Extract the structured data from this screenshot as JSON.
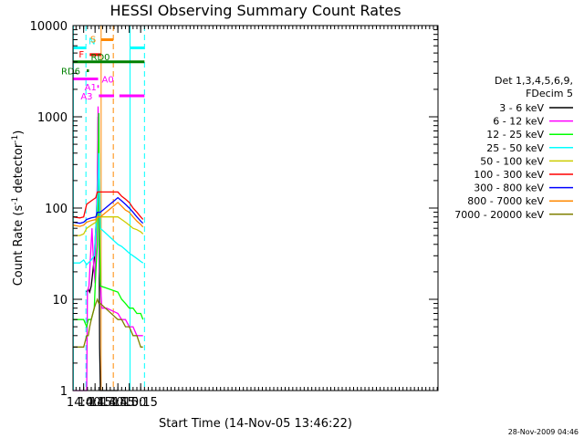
{
  "chart_data": {
    "type": "line",
    "title": "HESSI Observing Summary Count Rates",
    "xlabel": "Start Time (14-Nov-05 13:46:22)",
    "ylabel": "Count Rate (s",
    "ylabel_sup": "-1",
    "ylabel_tail": " detector",
    "ylabel_sup2": "-1",
    "ylabel_end": ")",
    "yscale": "log",
    "ylim": [
      1,
      10000
    ],
    "xlim_min": [
      826,
      1306
    ],
    "x_ticks": [
      {
        "min": 840,
        "label": "14:00"
      },
      {
        "min": 855,
        "label": "14:15"
      },
      {
        "min": 870,
        "label": "14:30"
      },
      {
        "min": 885,
        "label": "14:45"
      },
      {
        "min": 900,
        "label": "15:00"
      },
      {
        "min": 915,
        "label": "15:15"
      }
    ],
    "y_ticks": [
      {
        "value": 1,
        "label": "1"
      },
      {
        "value": 10,
        "label": "10"
      },
      {
        "value": 100,
        "label": "100"
      },
      {
        "value": 1000,
        "label": "1000"
      },
      {
        "value": 10000,
        "label": "10000"
      }
    ],
    "legend_header": [
      "Det 1,3,4,5,6,9,",
      "FDecim 5"
    ],
    "series": [
      {
        "name": "3 - 6 keV",
        "color": "#000000",
        "points": [
          [
            844,
            12
          ],
          [
            846,
            13
          ],
          [
            848,
            12
          ],
          [
            850,
            14
          ],
          [
            852,
            20
          ],
          [
            854,
            28
          ],
          [
            856,
            60
          ],
          [
            858,
            150
          ],
          [
            859,
            1000
          ],
          [
            860,
            300
          ],
          [
            861,
            3
          ],
          [
            862,
            1
          ],
          [
            868,
            1
          ],
          [
            885,
            1
          ]
        ]
      },
      {
        "name": "6 - 12 keV",
        "color": "#ff00ff",
        "points": [
          [
            826,
            1
          ],
          [
            844,
            1
          ],
          [
            845,
            12
          ],
          [
            847,
            14
          ],
          [
            849,
            30
          ],
          [
            851,
            60
          ],
          [
            853,
            25
          ],
          [
            855,
            15
          ],
          [
            856,
            40
          ],
          [
            858,
            200
          ],
          [
            859,
            1300
          ],
          [
            860,
            300
          ],
          [
            861,
            20
          ],
          [
            862,
            15
          ],
          [
            864,
            8
          ],
          [
            870,
            8
          ],
          [
            885,
            7
          ],
          [
            890,
            6
          ],
          [
            895,
            6
          ],
          [
            900,
            5
          ],
          [
            905,
            5
          ],
          [
            910,
            4
          ],
          [
            915,
            4
          ],
          [
            918,
            4
          ]
        ]
      },
      {
        "name": "12 - 25 keV",
        "color": "#00ff00",
        "points": [
          [
            826,
            6
          ],
          [
            835,
            6
          ],
          [
            840,
            6
          ],
          [
            844,
            5
          ],
          [
            846,
            6
          ],
          [
            850,
            6
          ],
          [
            854,
            8
          ],
          [
            856,
            20
          ],
          [
            858,
            40
          ],
          [
            860,
            1100
          ],
          [
            861,
            50
          ],
          [
            862,
            14
          ],
          [
            885,
            12
          ],
          [
            890,
            10
          ],
          [
            895,
            9
          ],
          [
            900,
            8
          ],
          [
            905,
            8
          ],
          [
            910,
            7
          ],
          [
            915,
            7
          ],
          [
            918,
            6
          ]
        ]
      },
      {
        "name": "25 - 50 keV",
        "color": "#00ffff",
        "points": [
          [
            826,
            25
          ],
          [
            835,
            25
          ],
          [
            840,
            27
          ],
          [
            844,
            24
          ],
          [
            846,
            25
          ],
          [
            850,
            27
          ],
          [
            854,
            30
          ],
          [
            856,
            60
          ],
          [
            858,
            120
          ],
          [
            860,
            400
          ],
          [
            862,
            60
          ],
          [
            885,
            40
          ],
          [
            890,
            38
          ],
          [
            895,
            35
          ],
          [
            900,
            32
          ],
          [
            905,
            30
          ],
          [
            910,
            28
          ],
          [
            915,
            26
          ],
          [
            918,
            25
          ]
        ]
      },
      {
        "name": "50 - 100 keV",
        "color": "#cccc00",
        "points": [
          [
            826,
            50
          ],
          [
            835,
            50
          ],
          [
            840,
            52
          ],
          [
            844,
            60
          ],
          [
            850,
            65
          ],
          [
            856,
            70
          ],
          [
            858,
            80
          ],
          [
            860,
            80
          ],
          [
            862,
            80
          ],
          [
            885,
            80
          ],
          [
            890,
            75
          ],
          [
            895,
            70
          ],
          [
            900,
            65
          ],
          [
            905,
            60
          ],
          [
            910,
            58
          ],
          [
            915,
            55
          ],
          [
            918,
            52
          ]
        ]
      },
      {
        "name": "100 - 300 keV",
        "color": "#ff0000",
        "points": [
          [
            826,
            80
          ],
          [
            835,
            78
          ],
          [
            840,
            80
          ],
          [
            844,
            110
          ],
          [
            850,
            120
          ],
          [
            856,
            130
          ],
          [
            858,
            150
          ],
          [
            860,
            150
          ],
          [
            862,
            150
          ],
          [
            885,
            150
          ],
          [
            890,
            135
          ],
          [
            895,
            125
          ],
          [
            900,
            115
          ],
          [
            905,
            100
          ],
          [
            910,
            90
          ],
          [
            915,
            80
          ],
          [
            918,
            75
          ]
        ]
      },
      {
        "name": "300 - 800 keV",
        "color": "#0000ff",
        "points": [
          [
            826,
            70
          ],
          [
            835,
            68
          ],
          [
            840,
            70
          ],
          [
            844,
            75
          ],
          [
            850,
            78
          ],
          [
            856,
            80
          ],
          [
            858,
            90
          ],
          [
            860,
            90
          ],
          [
            862,
            90
          ],
          [
            885,
            130
          ],
          [
            890,
            120
          ],
          [
            895,
            110
          ],
          [
            900,
            100
          ],
          [
            905,
            90
          ],
          [
            910,
            80
          ],
          [
            915,
            72
          ],
          [
            918,
            68
          ]
        ]
      },
      {
        "name": "800 - 7000 keV",
        "color": "#ff8800",
        "points": [
          [
            826,
            65
          ],
          [
            835,
            63
          ],
          [
            840,
            65
          ],
          [
            844,
            70
          ],
          [
            850,
            73
          ],
          [
            856,
            75
          ],
          [
            858,
            80
          ],
          [
            860,
            80
          ],
          [
            862,
            80
          ],
          [
            885,
            115
          ],
          [
            890,
            105
          ],
          [
            895,
            95
          ],
          [
            900,
            90
          ],
          [
            905,
            80
          ],
          [
            910,
            72
          ],
          [
            915,
            66
          ],
          [
            918,
            62
          ]
        ]
      },
      {
        "name": "7000 - 20000 keV",
        "color": "#808000",
        "points": [
          [
            826,
            3
          ],
          [
            835,
            3
          ],
          [
            840,
            3
          ],
          [
            844,
            4
          ],
          [
            846,
            4
          ],
          [
            848,
            5
          ],
          [
            850,
            6
          ],
          [
            854,
            8
          ],
          [
            856,
            9
          ],
          [
            858,
            10
          ],
          [
            860,
            9
          ],
          [
            862,
            9
          ],
          [
            885,
            6
          ],
          [
            890,
            6
          ],
          [
            895,
            5
          ],
          [
            900,
            5
          ],
          [
            905,
            4
          ],
          [
            910,
            4
          ],
          [
            915,
            3
          ],
          [
            918,
            3
          ]
        ]
      }
    ],
    "flag_bars": [
      {
        "label": "N",
        "color": "#00ffff",
        "level": 5700,
        "segments": [
          [
            826,
            843
          ],
          [
            901,
            920
          ]
        ]
      },
      {
        "label": "S",
        "color": "#ff8800",
        "level": 7000,
        "segments": [
          [
            863,
            879
          ]
        ]
      },
      {
        "label": "F",
        "color": "#ff0000",
        "level": 4800,
        "segments": [
          [
            848,
            863
          ]
        ]
      },
      {
        "label": "RD0",
        "color": "#008000",
        "level": 4000,
        "segments": [
          [
            826,
            920
          ]
        ]
      },
      {
        "label": "RD6",
        "color": "#008000",
        "level": 3200,
        "segments": [
          [
            844,
            847
          ]
        ]
      },
      {
        "label": "A0",
        "color": "#ff00ff",
        "level": 2600,
        "segments": [
          [
            826,
            859
          ]
        ]
      },
      {
        "label": "A1",
        "color": "#ff00ff",
        "level": 2150,
        "segments": [
          [
            858,
            860
          ]
        ]
      },
      {
        "label": "A3",
        "color": "#ff00ff",
        "level": 1700,
        "segments": [
          [
            860,
            880
          ],
          [
            887,
            920
          ]
        ]
      }
    ],
    "vertical_lines": [
      {
        "min": 826.5,
        "color": "#00ffff",
        "dashed": false
      },
      {
        "min": 843,
        "color": "#00ffff",
        "dashed": true
      },
      {
        "min": 863,
        "color": "#ff8800",
        "dashed": false
      },
      {
        "min": 879,
        "color": "#ff8800",
        "dashed": true
      },
      {
        "min": 901,
        "color": "#00ffff",
        "dashed": false
      },
      {
        "min": 920,
        "color": "#00ffff",
        "dashed": true
      }
    ],
    "footer_timestamp": "28-Nov-2009 04:46",
    "grid": false,
    "legend_position": "right"
  }
}
